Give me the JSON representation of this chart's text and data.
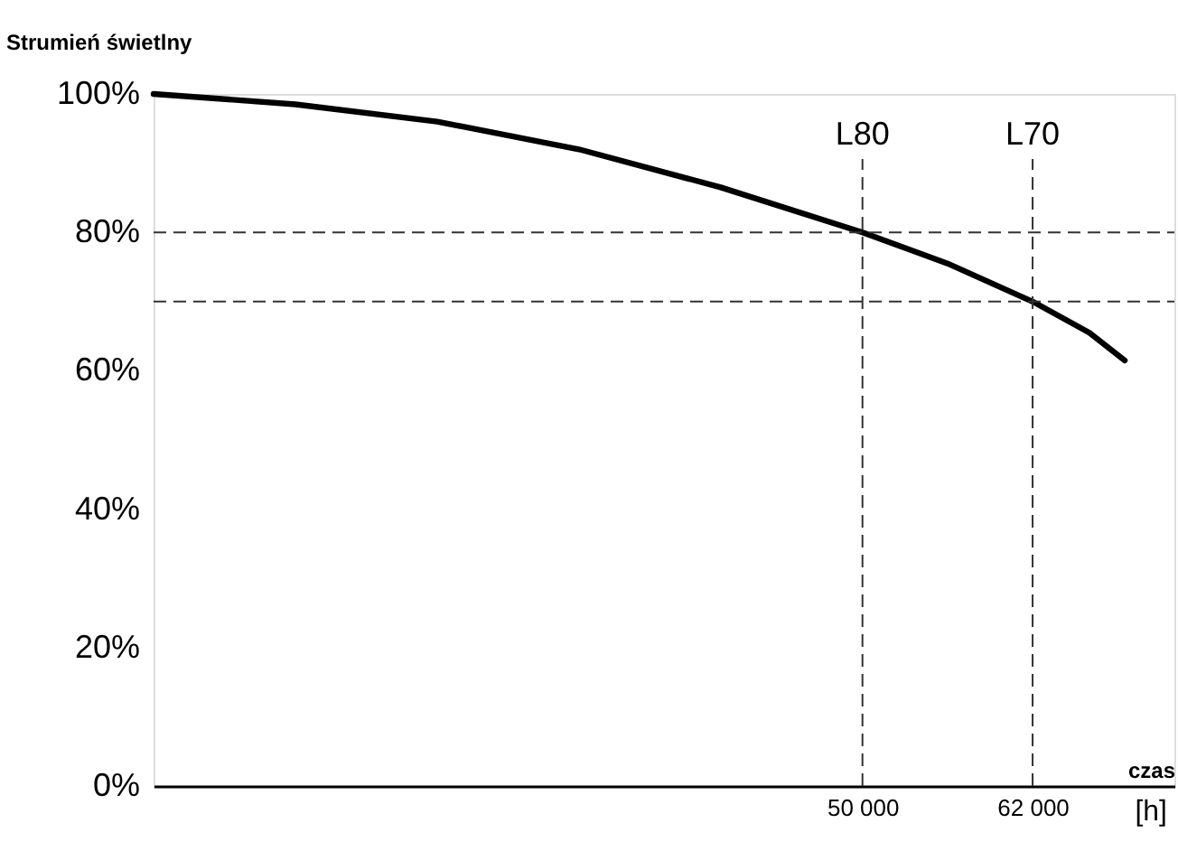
{
  "chart_data": {
    "type": "line",
    "ylabel": "Strumień świetlny",
    "xlabel": "czas",
    "annotations": [
      "[h]"
    ],
    "x": [
      0,
      10000,
      20000,
      30000,
      40000,
      50000,
      56000,
      62000,
      66000,
      68500
    ],
    "series": [
      {
        "color": "#000000",
        "values": [
          100,
          98.5,
          96,
          92,
          86.5,
          80,
          75.5,
          70,
          65.5,
          61.5
        ]
      }
    ],
    "xlim": [
      0,
      72000
    ],
    "xticks": [
      {
        "value": 50000,
        "label": "50 000"
      },
      {
        "value": 62000,
        "label": "62 000"
      }
    ],
    "ylim": [
      0,
      100
    ],
    "yticks": [
      {
        "value": 0,
        "label": "0%"
      },
      {
        "value": 20,
        "label": "20%"
      },
      {
        "value": 40,
        "label": "40%"
      },
      {
        "value": 60,
        "label": "60%"
      },
      {
        "value": 80,
        "label": "80%"
      },
      {
        "value": 100,
        "label": "100%"
      }
    ],
    "line_style": "solid",
    "ref_lines": [
      {
        "axis": "y",
        "value": 80,
        "line_style": "dashed"
      },
      {
        "axis": "y",
        "value": 70,
        "line_style": "dashed"
      },
      {
        "axis": "x",
        "value": 50000,
        "label": "L80",
        "line_style": "dashed"
      },
      {
        "axis": "x",
        "value": 62000,
        "label": "L70",
        "line_style": "dashed"
      }
    ]
  }
}
